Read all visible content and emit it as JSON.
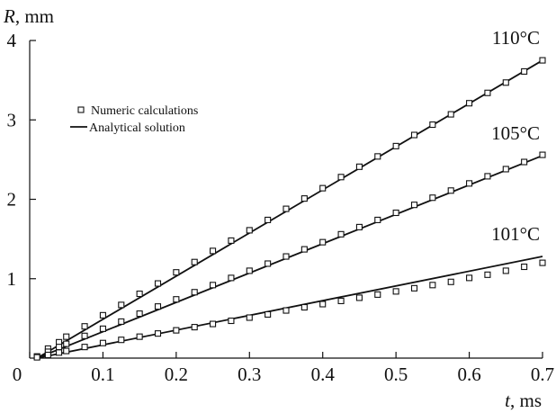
{
  "chart_data": {
    "type": "line",
    "title": "",
    "xlabel_var": "t",
    "xlabel_unit": ", ms",
    "ylabel_var": "R",
    "ylabel_unit": ", mm",
    "xlim": [
      0,
      0.7
    ],
    "ylim": [
      0,
      4
    ],
    "x_ticks": [
      0,
      0.1,
      0.2,
      0.3,
      0.4,
      0.5,
      0.6,
      0.7
    ],
    "x_tick_labels": [
      "0",
      "0.1",
      "0.2",
      "0.3",
      "0.4",
      "0.5",
      "0.6",
      "0.7"
    ],
    "y_ticks": [
      1,
      2,
      3,
      4
    ],
    "y_tick_labels": [
      "1",
      "2",
      "3",
      "4"
    ],
    "grid": false,
    "legend": {
      "position": "upper-left",
      "items": [
        {
          "marker": "square",
          "label": "Numeric calculations"
        },
        {
          "marker": "line",
          "label": "Analytical solution"
        }
      ]
    },
    "color": "#111111",
    "series": [
      {
        "name": "110°C",
        "analytical": {
          "x": [
            0.01,
            0.7
          ],
          "y": [
            0.0,
            3.75
          ]
        },
        "numeric": {
          "x": [
            0.01,
            0.025,
            0.04,
            0.05,
            0.075,
            0.1,
            0.125,
            0.15,
            0.175,
            0.2,
            0.225,
            0.25,
            0.275,
            0.3,
            0.325,
            0.35,
            0.375,
            0.4,
            0.425,
            0.45,
            0.475,
            0.5,
            0.525,
            0.55,
            0.575,
            0.6,
            0.625,
            0.65,
            0.675,
            0.7
          ],
          "y": [
            0.02,
            0.12,
            0.2,
            0.27,
            0.4,
            0.54,
            0.67,
            0.81,
            0.94,
            1.08,
            1.21,
            1.35,
            1.48,
            1.61,
            1.74,
            1.88,
            2.01,
            2.14,
            2.28,
            2.41,
            2.54,
            2.67,
            2.81,
            2.94,
            3.07,
            3.21,
            3.34,
            3.47,
            3.61,
            3.75
          ]
        }
      },
      {
        "name": "105°C",
        "analytical": {
          "x": [
            0.01,
            0.7
          ],
          "y": [
            0.0,
            2.55
          ]
        },
        "numeric": {
          "x": [
            0.01,
            0.025,
            0.04,
            0.05,
            0.075,
            0.1,
            0.125,
            0.15,
            0.175,
            0.2,
            0.225,
            0.25,
            0.275,
            0.3,
            0.325,
            0.35,
            0.375,
            0.4,
            0.425,
            0.45,
            0.475,
            0.5,
            0.525,
            0.55,
            0.575,
            0.6,
            0.625,
            0.65,
            0.675,
            0.7
          ],
          "y": [
            0.02,
            0.08,
            0.14,
            0.18,
            0.28,
            0.37,
            0.46,
            0.56,
            0.65,
            0.74,
            0.83,
            0.92,
            1.01,
            1.1,
            1.19,
            1.28,
            1.37,
            1.46,
            1.56,
            1.65,
            1.74,
            1.83,
            1.93,
            2.02,
            2.11,
            2.2,
            2.29,
            2.38,
            2.47,
            2.56
          ]
        }
      },
      {
        "name": "101°C",
        "analytical": {
          "x": [
            0.01,
            0.7
          ],
          "y": [
            0.0,
            1.28
          ]
        },
        "numeric": {
          "x": [
            0.01,
            0.025,
            0.04,
            0.05,
            0.075,
            0.1,
            0.125,
            0.15,
            0.175,
            0.2,
            0.225,
            0.25,
            0.275,
            0.3,
            0.325,
            0.35,
            0.375,
            0.4,
            0.425,
            0.45,
            0.475,
            0.5,
            0.525,
            0.55,
            0.575,
            0.6,
            0.625,
            0.65,
            0.675,
            0.7
          ],
          "y": [
            0.01,
            0.04,
            0.07,
            0.09,
            0.14,
            0.19,
            0.23,
            0.27,
            0.31,
            0.35,
            0.39,
            0.43,
            0.47,
            0.51,
            0.55,
            0.6,
            0.64,
            0.68,
            0.72,
            0.76,
            0.8,
            0.84,
            0.88,
            0.92,
            0.96,
            1.01,
            1.05,
            1.1,
            1.15,
            1.2
          ]
        }
      }
    ]
  }
}
